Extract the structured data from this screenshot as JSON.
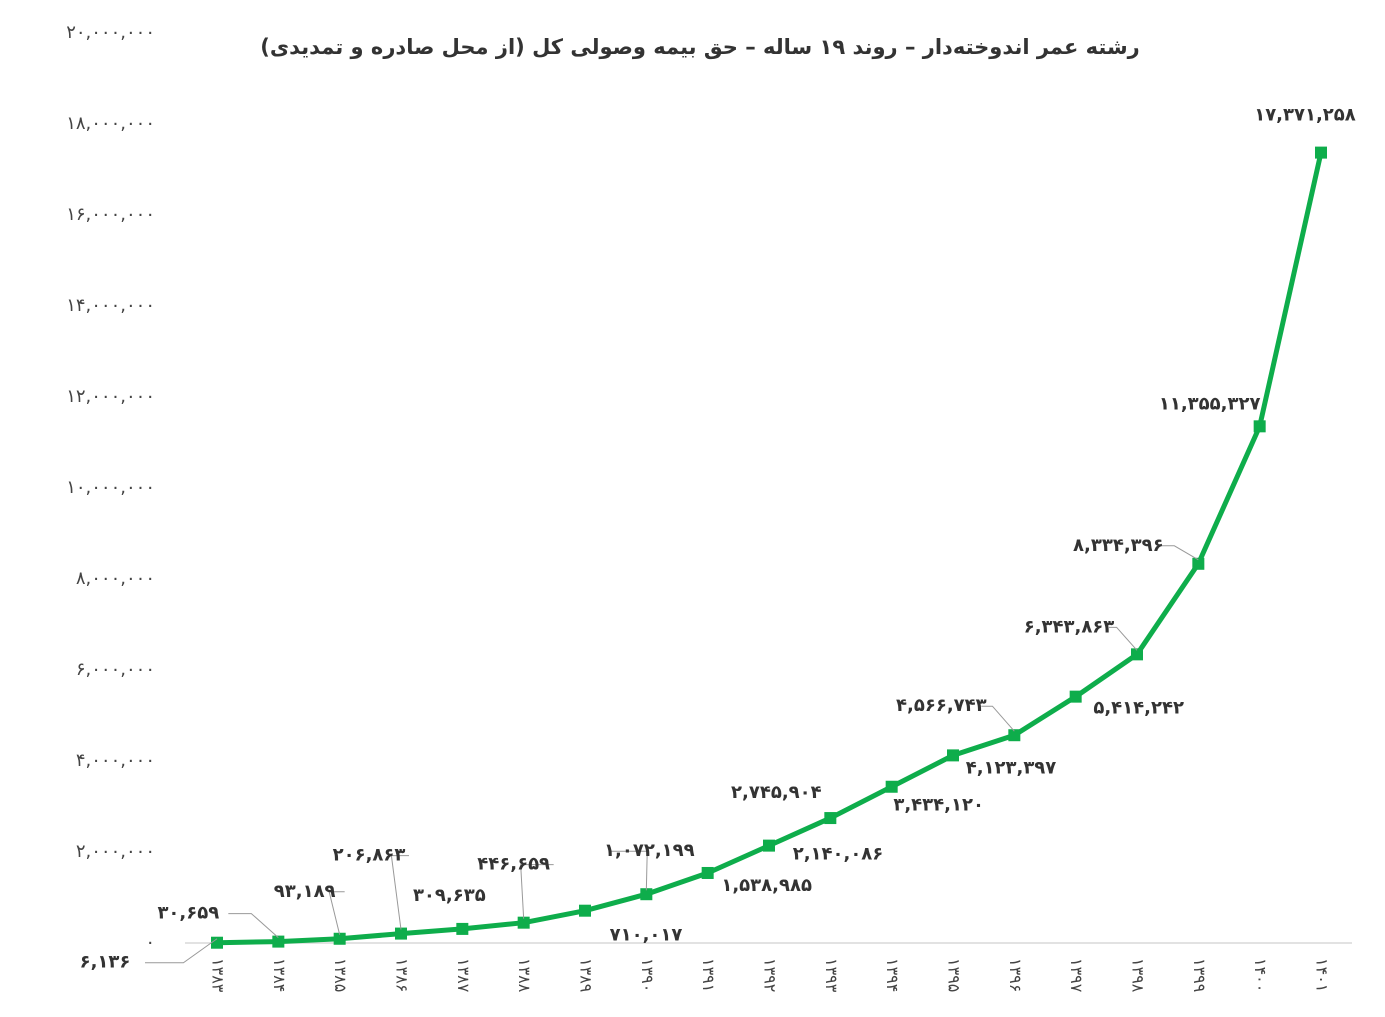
{
  "chart_data": {
    "type": "line",
    "title": "رشته عمر اندوخته‌دار – روند ۱۹ ساله – حق بیمه وصولی کل (از محل صادره و تمدیدی)",
    "categories": [
      "۱۳۸۳",
      "۱۳۸۴",
      "۱۳۸۵",
      "۱۳۸۶",
      "۱۳۸۷",
      "۱۳۸۸",
      "۱۳۸۹",
      "۱۳۹۰",
      "۱۳۹۱",
      "۱۳۹۲",
      "۱۳۹۳",
      "۱۳۹۴",
      "۱۳۹۵",
      "۱۳۹۶",
      "۱۳۹۷",
      "۱۳۹۸",
      "۱۳۹۹",
      "۱۴۰۰",
      "۱۴۰۱"
    ],
    "values": [
      6136,
      30659,
      93189,
      206863,
      309635,
      446659,
      710017,
      1072199,
      1538985,
      2140086,
      2745904,
      3434120,
      4123397,
      4566743,
      5414242,
      6343863,
      8334396,
      11355327,
      17371258
    ],
    "value_labels": [
      "۶,۱۳۶",
      "۳۰,۶۵۹",
      "۹۳,۱۸۹",
      "۲۰۶,۸۶۳",
      "۳۰۹,۶۳۵",
      "۴۴۶,۶۵۹",
      "۷۱۰,۰۱۷",
      "۱,۰۷۲,۱۹۹",
      "۱,۵۳۸,۹۸۵",
      "۲,۱۴۰,۰۸۶",
      "۲,۷۴۵,۹۰۴",
      "۳,۴۳۴,۱۲۰",
      "۴,۱۲۳,۳۹۷",
      "۴,۵۶۶,۷۴۳",
      "۵,۴۱۴,۲۴۲",
      "۶,۳۴۳,۸۶۳",
      "۸,۳۳۴,۳۹۶",
      "۱۱,۳۵۵,۳۲۷",
      "۱۷,۳۷۱,۲۵۸"
    ],
    "color": "#0ead4b",
    "ylim": [
      0,
      20000000
    ],
    "yticks": [
      {
        "value": 0,
        "label": "۰"
      },
      {
        "value": 2000000,
        "label": "۲,۰۰۰,۰۰۰"
      },
      {
        "value": 4000000,
        "label": "۴,۰۰۰,۰۰۰"
      },
      {
        "value": 6000000,
        "label": "۶,۰۰۰,۰۰۰"
      },
      {
        "value": 8000000,
        "label": "۸,۰۰۰,۰۰۰"
      },
      {
        "value": 10000000,
        "label": "۱۰,۰۰۰,۰۰۰"
      },
      {
        "value": 12000000,
        "label": "۱۲,۰۰۰,۰۰۰"
      },
      {
        "value": 14000000,
        "label": "۱۴,۰۰۰,۰۰۰"
      },
      {
        "value": 16000000,
        "label": "۱۶,۰۰۰,۰۰۰"
      },
      {
        "value": 18000000,
        "label": "۱۸,۰۰۰,۰۰۰"
      },
      {
        "value": 20000000,
        "label": "۲۰,۰۰۰,۰۰۰"
      }
    ],
    "grid": false
  }
}
